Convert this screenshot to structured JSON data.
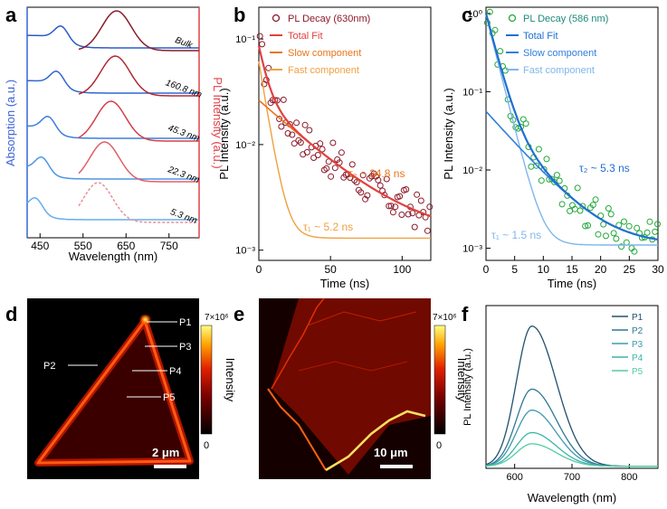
{
  "colors": {
    "absorption": "#3a63d6",
    "pl": "#e0414a",
    "bulk": "#8a1f2b",
    "b_data": "#8b1a2a",
    "b_fit": "#e0413e",
    "b_slow": "#e8751a",
    "b_fast": "#f0a040",
    "c_data": "#22a83a",
    "c_fit": "#1f6fd0",
    "c_slow": "#2f7fdc",
    "c_fast": "#7fb6ee",
    "f_series": [
      "#23506e",
      "#2f7894",
      "#3e9ab0",
      "#3ab5a7",
      "#52cba2"
    ]
  },
  "panels": {
    "a": "a",
    "b": "b",
    "c": "c",
    "d": "d",
    "e": "e",
    "f": "f"
  },
  "chart_data": [
    {
      "panel": "a",
      "type": "line",
      "xlabel": "Wavelength (nm)",
      "ylabel_left": "Absorption (a.u.)",
      "ylabel_right": "PL Intensity (a.u.)",
      "xlim": [
        420,
        820
      ],
      "xticks": [
        450,
        550,
        650,
        750
      ],
      "thickness_labels": [
        "Bulk",
        "160.8 nm",
        "45.3 nm",
        "22.3 nm",
        "5.3 nm"
      ],
      "absorption_peaks_nm": [
        500,
        490,
        470,
        455,
        440
      ],
      "pl_peaks_nm": [
        628,
        625,
        615,
        600,
        585
      ]
    },
    {
      "panel": "b",
      "type": "scatter",
      "xlabel": "Time (ns)",
      "ylabel": "PL Intensity (a.u.)",
      "yscale": "log",
      "xlim": [
        0,
        120
      ],
      "ylim": [
        0.0008,
        0.2
      ],
      "xticks": [
        0,
        50,
        100
      ],
      "yticks": [
        "10⁻¹",
        "10⁻²",
        "10⁻³"
      ],
      "legend": [
        "PL Decay (630nm)",
        "Total Fit",
        "Slow component",
        "Fast component"
      ],
      "annotations": [
        "τ₂ ~ 34.8 ns",
        "τ₁ ~ 5.2 ns"
      ],
      "tau_slow_ns": 34.8,
      "tau_fast_ns": 5.2
    },
    {
      "panel": "c",
      "type": "scatter",
      "xlabel": "Time (ns)",
      "ylabel": "PL Intensity (a.u.)",
      "yscale": "log",
      "xlim": [
        0,
        30
      ],
      "ylim": [
        0.0007,
        1.2
      ],
      "xticks": [
        0,
        5,
        10,
        15,
        20,
        25,
        30
      ],
      "yticks": [
        "10⁰",
        "10⁻¹",
        "10⁻²",
        "10⁻³"
      ],
      "legend": [
        "PL Decay (586 nm)",
        "Total Fit",
        "Slow component",
        "Fast component"
      ],
      "annotations": [
        "τ₂ ~ 5.3 ns",
        "τ₁ ~ 1.5 ns"
      ],
      "tau_slow_ns": 5.3,
      "tau_fast_ns": 1.5
    },
    {
      "panel": "d",
      "type": "heatmap",
      "colorbar_label": "Intensity",
      "colorbar_max": "7×10⁶",
      "colorbar_min": "0",
      "scale_bar": "2 μm",
      "points": [
        "P1",
        "P2",
        "P3",
        "P4",
        "P5"
      ]
    },
    {
      "panel": "e",
      "type": "heatmap",
      "colorbar_label": "Intensity",
      "colorbar_max": "7×10⁶",
      "colorbar_min": "0",
      "scale_bar": "10 μm"
    },
    {
      "panel": "f",
      "type": "line",
      "xlabel": "Wavelength (nm)",
      "ylabel": "PL Intensity (a.u.)",
      "xlim": [
        550,
        850
      ],
      "xticks": [
        600,
        700,
        800
      ],
      "series": [
        {
          "name": "P1",
          "peak_nm": 630,
          "amplitude": 1.0
        },
        {
          "name": "P2",
          "peak_nm": 630,
          "amplitude": 0.55
        },
        {
          "name": "P3",
          "peak_nm": 630,
          "amplitude": 0.4
        },
        {
          "name": "P4",
          "peak_nm": 630,
          "amplitude": 0.24
        },
        {
          "name": "P5",
          "peak_nm": 630,
          "amplitude": 0.16
        }
      ]
    }
  ]
}
